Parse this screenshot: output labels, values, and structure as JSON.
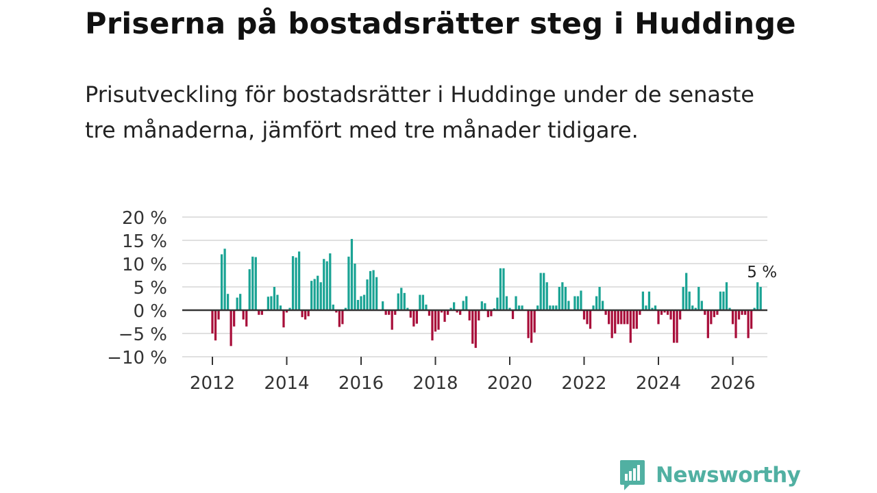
{
  "title": "Priserna på bostadsrätter steg i Huddinge",
  "subtitle": "Prisutveckling för bostadsrätter i Huddinge under de senaste tre månaderna, jämfört med tre månader tidigare.",
  "brand": {
    "name": "Newsworthy",
    "color": "#51b0a2"
  },
  "colors": {
    "positive": "#1aa394",
    "negative": "#a80e3a",
    "grid": "#e0e0e0",
    "zero": "#333333"
  },
  "chart_data": {
    "type": "bar",
    "title": "Priserna på bostadsrätter steg i Huddinge",
    "ylabel": "",
    "xlabel": "",
    "ylim": [
      -10,
      20
    ],
    "xlim": [
      2011.2,
      2026.8
    ],
    "yticks": [
      {
        "value": 20,
        "label": "20 %"
      },
      {
        "value": 15,
        "label": "15 %"
      },
      {
        "value": 10,
        "label": "10 %"
      },
      {
        "value": 5,
        "label": "5 %"
      },
      {
        "value": 0,
        "label": "0 %"
      },
      {
        "value": -5,
        "label": "−5 %"
      },
      {
        "value": -10,
        "label": "−10 %"
      }
    ],
    "xticks": [
      {
        "value": 2012,
        "label": "2012"
      },
      {
        "value": 2014,
        "label": "2014"
      },
      {
        "value": 2016,
        "label": "2016"
      },
      {
        "value": 2018,
        "label": "2018"
      },
      {
        "value": 2020,
        "label": "2020"
      },
      {
        "value": 2022,
        "label": "2022"
      },
      {
        "value": 2024,
        "label": "2024"
      },
      {
        "value": 2026,
        "label": "2026"
      }
    ],
    "start_year": 2012,
    "start_month": 1,
    "unit": "%",
    "annotation": {
      "text": "5 %",
      "value": 5
    },
    "values": [
      -5,
      -6.5,
      -2,
      12,
      13.2,
      3.5,
      -7.7,
      -3.5,
      2.7,
      3.5,
      -2,
      -3.5,
      8.8,
      11.5,
      11.4,
      -1,
      -1,
      0,
      2.9,
      3,
      5,
      3.3,
      1,
      -3.7,
      -0.5,
      0.5,
      11.6,
      11.3,
      12.6,
      -1.5,
      -2,
      -1.3,
      6.3,
      6.7,
      7.4,
      6,
      11,
      10.5,
      12.2,
      1.2,
      -0.5,
      -3.6,
      -3,
      0.5,
      11.5,
      15.3,
      10,
      2.2,
      3,
      3.3,
      6.6,
      8.4,
      8.6,
      7.1,
      0,
      1.9,
      -1,
      -1,
      -4.2,
      -1,
      3.6,
      4.8,
      3.7,
      0.5,
      -1.6,
      -3.5,
      -2.9,
      3.3,
      3.3,
      1.2,
      -1.2,
      -6.5,
      -4.6,
      -4.2,
      -0.5,
      -2.5,
      -1,
      0.5,
      1.7,
      -0.5,
      -1,
      2,
      3,
      -2.2,
      -7.2,
      -8.1,
      -2.2,
      1.9,
      1.5,
      -1.5,
      -1.3,
      0.4,
      2.7,
      9,
      9,
      3,
      0.5,
      -1.9,
      3,
      1,
      1,
      0,
      -6,
      -7,
      -4.8,
      1,
      8,
      8,
      6,
      1,
      1,
      1,
      5,
      6,
      5,
      2,
      0,
      3,
      3,
      4.2,
      -2,
      -3,
      -4,
      1,
      3,
      5,
      2,
      -1,
      -3,
      -6,
      -5,
      -3,
      -3,
      -3,
      -3,
      -7,
      -4,
      -4,
      -1,
      4,
      1,
      4,
      0.5,
      1,
      -3,
      -1,
      -0.5,
      -1,
      -2,
      -7,
      -7,
      -2,
      5,
      8,
      4,
      1,
      0.5,
      5,
      2,
      -1,
      -6,
      -3,
      -1.5,
      -1,
      4,
      4,
      6,
      0.5,
      -3,
      -6,
      -2,
      -1,
      -1,
      -6,
      -4,
      0.5,
      6,
      5
    ]
  }
}
